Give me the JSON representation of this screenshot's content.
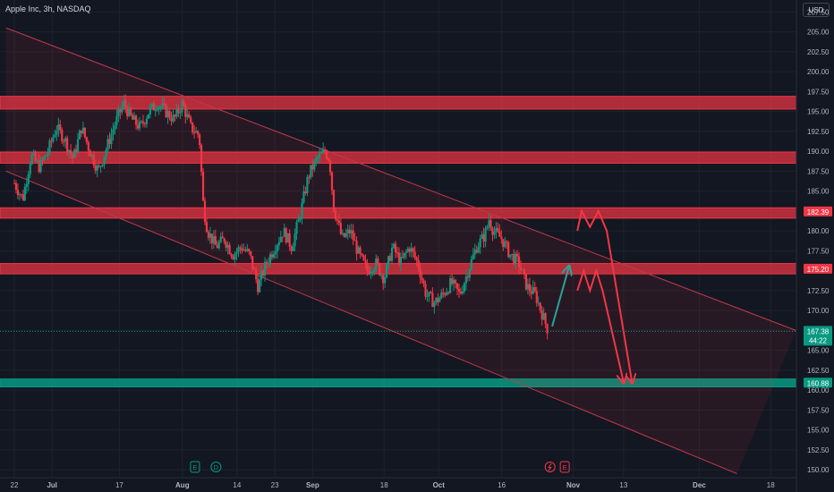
{
  "header": {
    "title": "Apple Inc, 3h, NASDAQ",
    "currency": "USD"
  },
  "chart_data": {
    "type": "candlestick",
    "y_axis": {
      "min": 149,
      "max": 209,
      "side": "right",
      "ticks": [
        "150.00",
        "152.50",
        "155.00",
        "157.50",
        "160.00",
        "162.50",
        "165.00",
        "167.50",
        "170.00",
        "172.50",
        "175.00",
        "177.50",
        "180.00",
        "182.50",
        "185.00",
        "187.50",
        "190.00",
        "192.50",
        "195.00",
        "197.50",
        "200.00",
        "202.50",
        "205.00",
        "207.50"
      ]
    },
    "x_axis": {
      "ticks": [
        {
          "label": "22",
          "day": 0
        },
        {
          "label": "Jul",
          "day": 9
        },
        {
          "label": "17",
          "day": 25
        },
        {
          "label": "Aug",
          "day": 40
        },
        {
          "label": "14",
          "day": 53
        },
        {
          "label": "23",
          "day": 62
        },
        {
          "label": "Sep",
          "day": 71
        },
        {
          "label": "18",
          "day": 88
        },
        {
          "label": "Oct",
          "day": 101
        },
        {
          "label": "16",
          "day": 116
        },
        {
          "label": "Nov",
          "day": 133
        },
        {
          "label": "13",
          "day": 145
        },
        {
          "label": "Dec",
          "day": 163
        },
        {
          "label": "18",
          "day": 180
        }
      ]
    },
    "close_series": [
      [
        0,
        186
      ],
      [
        2,
        184
      ],
      [
        4,
        189.5
      ],
      [
        6,
        188
      ],
      [
        8,
        190
      ],
      [
        10,
        193
      ],
      [
        12,
        191.5
      ],
      [
        14,
        189
      ],
      [
        16,
        193
      ],
      [
        18,
        190
      ],
      [
        20,
        187.5
      ],
      [
        22,
        190.5
      ],
      [
        24,
        193.5
      ],
      [
        26,
        196
      ],
      [
        28,
        194
      ],
      [
        30,
        193
      ],
      [
        32,
        195
      ],
      [
        34,
        196
      ],
      [
        36,
        195
      ],
      [
        38,
        194
      ],
      [
        40,
        196
      ],
      [
        42,
        193
      ],
      [
        44,
        192
      ],
      [
        45,
        183
      ],
      [
        46,
        180
      ],
      [
        48,
        178
      ],
      [
        50,
        179
      ],
      [
        52,
        177
      ],
      [
        54,
        178
      ],
      [
        56,
        177
      ],
      [
        58,
        173
      ],
      [
        60,
        176
      ],
      [
        62,
        178
      ],
      [
        64,
        180
      ],
      [
        66,
        178
      ],
      [
        68,
        182
      ],
      [
        70,
        187
      ],
      [
        72,
        189
      ],
      [
        74,
        190
      ],
      [
        75,
        189
      ],
      [
        76,
        183
      ],
      [
        77,
        181
      ],
      [
        78,
        179
      ],
      [
        80,
        180
      ],
      [
        82,
        177
      ],
      [
        84,
        175
      ],
      [
        86,
        176
      ],
      [
        88,
        174
      ],
      [
        90,
        178
      ],
      [
        92,
        176
      ],
      [
        94,
        178
      ],
      [
        96,
        176
      ],
      [
        98,
        172
      ],
      [
        100,
        171
      ],
      [
        102,
        172
      ],
      [
        104,
        173.5
      ],
      [
        106,
        172
      ],
      [
        108,
        175
      ],
      [
        110,
        178
      ],
      [
        112,
        179.5
      ],
      [
        113,
        181.5
      ],
      [
        114,
        180
      ],
      [
        116,
        179
      ],
      [
        118,
        177
      ],
      [
        120,
        176
      ],
      [
        122,
        173
      ],
      [
        124,
        172
      ],
      [
        126,
        169
      ],
      [
        127,
        167.5
      ]
    ],
    "levels": [
      {
        "type": "resistance",
        "low": 195.3,
        "high": 196.9
      },
      {
        "type": "resistance",
        "low": 188.5,
        "high": 189.9
      },
      {
        "type": "resistance",
        "low": 181.6,
        "high": 182.9
      },
      {
        "type": "resistance",
        "low": 174.6,
        "high": 175.9
      },
      {
        "type": "support",
        "low": 160.4,
        "high": 161.4
      }
    ],
    "price_labels": [
      {
        "value": 182.39,
        "text": "182.39",
        "color": "#f23645"
      },
      {
        "value": 175.2,
        "text": "175.20",
        "color": "#f23645"
      },
      {
        "value": 167.38,
        "text": "167.38",
        "countdown": "44:22",
        "color": "#089981"
      },
      {
        "value": 160.88,
        "text": "160.88",
        "color": "#089981"
      }
    ],
    "channel": {
      "upper": [
        [
          -2,
          205.5
        ],
        [
          186,
          167.5
        ]
      ],
      "lower": [
        [
          -2,
          187.5
        ],
        [
          172,
          149.5
        ]
      ]
    },
    "annotations": {
      "arrows": [
        {
          "color": "#26a69a",
          "points": [
            [
              128,
              168
            ],
            [
              132,
              175.5
            ]
          ]
        },
        {
          "color": "#f23645",
          "points": [
            [
              134,
              180
            ],
            [
              135,
              182.5
            ],
            [
              137,
              180.5
            ],
            [
              139,
              182.5
            ],
            [
              141,
              180
            ],
            [
              147,
              161
            ]
          ]
        },
        {
          "color": "#f23645",
          "points": [
            [
              134,
              172.5
            ],
            [
              135.5,
              175
            ],
            [
              137,
              172.5
            ],
            [
              138.5,
              175
            ],
            [
              140,
              172.5
            ],
            [
              145,
              161
            ]
          ]
        }
      ],
      "events": [
        {
          "label": "E",
          "day": 43,
          "color": "#089981"
        },
        {
          "label": "D",
          "day": 48,
          "color": "#089981"
        },
        {
          "label": "E",
          "day": 131,
          "color": "#f23645"
        }
      ]
    },
    "colors": {
      "up": "#089981",
      "down": "#f23645",
      "background": "#131722",
      "grid": "#1e222d"
    },
    "grid": true
  }
}
